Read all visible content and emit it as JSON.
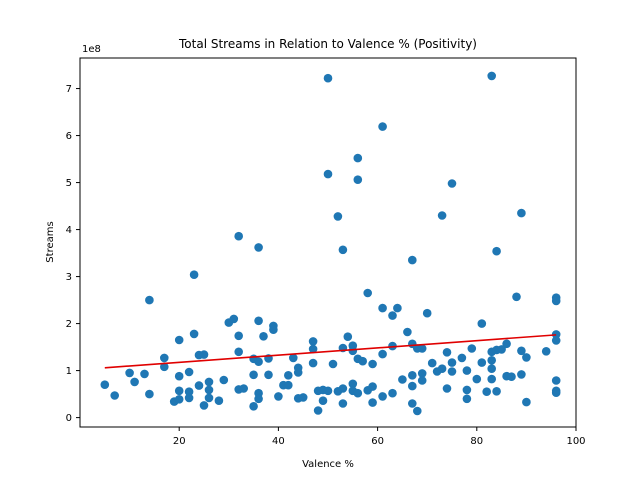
{
  "chart_data": {
    "type": "scatter",
    "title": "Total Streams in Relation to Valence % (Positivity)",
    "xlabel": "Valence %",
    "ylabel": "Streams",
    "y_scale_label": "1e8",
    "xlim": [
      0,
      100
    ],
    "ylim": [
      -0.2,
      7.65
    ],
    "xticks": [
      20,
      40,
      60,
      80,
      100
    ],
    "yticks": [
      0,
      1,
      2,
      3,
      4,
      5,
      6,
      7
    ],
    "grid": false,
    "legend": "none",
    "colors": {
      "points": "#1f77b4",
      "trend": "#e00000"
    },
    "trendline": {
      "x": [
        5,
        96
      ],
      "y": [
        1.06,
        1.76
      ]
    },
    "points": [
      [
        5,
        0.7
      ],
      [
        7,
        0.47
      ],
      [
        10,
        0.95
      ],
      [
        11,
        0.76
      ],
      [
        13,
        0.93
      ],
      [
        14,
        2.5
      ],
      [
        14,
        0.5
      ],
      [
        17,
        1.27
      ],
      [
        17,
        1.08
      ],
      [
        19,
        0.34
      ],
      [
        20,
        1.65
      ],
      [
        20,
        0.88
      ],
      [
        20,
        0.57
      ],
      [
        20,
        0.39
      ],
      [
        22,
        0.97
      ],
      [
        22,
        0.55
      ],
      [
        22,
        0.42
      ],
      [
        23,
        3.04
      ],
      [
        23,
        1.78
      ],
      [
        24,
        1.33
      ],
      [
        24,
        0.68
      ],
      [
        25,
        1.34
      ],
      [
        25,
        0.26
      ],
      [
        26,
        0.76
      ],
      [
        26,
        0.59
      ],
      [
        26,
        0.42
      ],
      [
        28,
        0.36
      ],
      [
        29,
        0.8
      ],
      [
        30,
        2.02
      ],
      [
        31,
        2.1
      ],
      [
        32,
        3.86
      ],
      [
        32,
        1.74
      ],
      [
        32,
        1.4
      ],
      [
        32,
        0.6
      ],
      [
        33,
        0.62
      ],
      [
        35,
        1.25
      ],
      [
        35,
        0.91
      ],
      [
        35,
        0.24
      ],
      [
        36,
        3.62
      ],
      [
        36,
        2.06
      ],
      [
        36,
        1.19
      ],
      [
        36,
        0.52
      ],
      [
        36,
        0.4
      ],
      [
        37,
        1.73
      ],
      [
        38,
        1.26
      ],
      [
        38,
        0.91
      ],
      [
        39,
        1.95
      ],
      [
        39,
        1.87
      ],
      [
        40,
        0.45
      ],
      [
        41,
        0.69
      ],
      [
        42,
        0.9
      ],
      [
        42,
        0.69
      ],
      [
        43,
        1.27
      ],
      [
        44,
        1.06
      ],
      [
        44,
        0.96
      ],
      [
        44,
        0.41
      ],
      [
        45,
        0.43
      ],
      [
        47,
        1.62
      ],
      [
        47,
        1.46
      ],
      [
        47,
        1.16
      ],
      [
        48,
        0.57
      ],
      [
        48,
        0.15
      ],
      [
        49,
        0.59
      ],
      [
        49,
        0.36
      ],
      [
        50,
        7.22
      ],
      [
        50,
        5.18
      ],
      [
        50,
        0.57
      ],
      [
        51,
        1.14
      ],
      [
        52,
        4.28
      ],
      [
        52,
        0.56
      ],
      [
        53,
        3.57
      ],
      [
        53,
        1.48
      ],
      [
        53,
        0.62
      ],
      [
        53,
        0.3
      ],
      [
        54,
        1.72
      ],
      [
        55,
        1.53
      ],
      [
        55,
        1.42
      ],
      [
        55,
        0.72
      ],
      [
        55,
        0.57
      ],
      [
        56,
        5.52
      ],
      [
        56,
        5.06
      ],
      [
        56,
        1.25
      ],
      [
        56,
        0.52
      ],
      [
        57,
        1.2
      ],
      [
        58,
        2.65
      ],
      [
        58,
        0.58
      ],
      [
        59,
        1.14
      ],
      [
        59,
        0.66
      ],
      [
        59,
        0.32
      ],
      [
        61,
        6.19
      ],
      [
        61,
        2.33
      ],
      [
        61,
        1.35
      ],
      [
        61,
        0.45
      ],
      [
        63,
        2.17
      ],
      [
        63,
        1.52
      ],
      [
        63,
        0.52
      ],
      [
        64,
        2.33
      ],
      [
        65,
        0.81
      ],
      [
        66,
        1.82
      ],
      [
        67,
        3.35
      ],
      [
        67,
        1.57
      ],
      [
        67,
        0.9
      ],
      [
        67,
        0.67
      ],
      [
        67,
        0.3
      ],
      [
        68,
        1.47
      ],
      [
        68,
        0.14
      ],
      [
        69,
        1.47
      ],
      [
        69,
        0.94
      ],
      [
        69,
        0.79
      ],
      [
        70,
        2.22
      ],
      [
        71,
        1.16
      ],
      [
        72,
        0.98
      ],
      [
        73,
        4.3
      ],
      [
        73,
        1.04
      ],
      [
        74,
        1.39
      ],
      [
        74,
        0.62
      ],
      [
        75,
        4.98
      ],
      [
        75,
        1.17
      ],
      [
        75,
        0.98
      ],
      [
        77,
        1.27
      ],
      [
        78,
        1.0
      ],
      [
        78,
        0.59
      ],
      [
        78,
        0.4
      ],
      [
        79,
        1.47
      ],
      [
        80,
        0.82
      ],
      [
        81,
        2.0
      ],
      [
        81,
        1.17
      ],
      [
        82,
        0.55
      ],
      [
        83,
        7.27
      ],
      [
        83,
        1.4
      ],
      [
        83,
        1.22
      ],
      [
        83,
        1.04
      ],
      [
        83,
        0.82
      ],
      [
        84,
        3.54
      ],
      [
        84,
        1.44
      ],
      [
        84,
        0.56
      ],
      [
        85,
        1.45
      ],
      [
        86,
        1.57
      ],
      [
        86,
        0.88
      ],
      [
        87,
        0.87
      ],
      [
        88,
        2.57
      ],
      [
        89,
        4.35
      ],
      [
        89,
        1.42
      ],
      [
        89,
        0.92
      ],
      [
        90,
        1.28
      ],
      [
        90,
        0.33
      ],
      [
        94,
        1.41
      ],
      [
        96,
        2.55
      ],
      [
        96,
        2.48
      ],
      [
        96,
        1.77
      ],
      [
        96,
        1.64
      ],
      [
        96,
        0.79
      ],
      [
        96,
        0.57
      ],
      [
        96,
        0.53
      ]
    ]
  }
}
